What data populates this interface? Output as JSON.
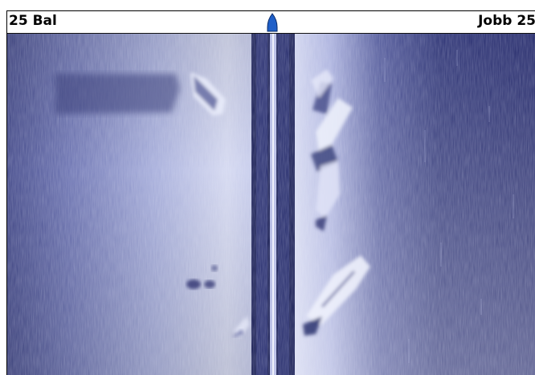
{
  "header": {
    "left_range": "25 Bal",
    "right_range": "Jobb 25"
  },
  "icons": {
    "boat": "boat-position-marker"
  },
  "colors": {
    "header_bg": "#ffffff",
    "sonar_dark": "#2a2f70",
    "sonar_light": "#d4d8f0",
    "marker": "#1f5fc8"
  }
}
